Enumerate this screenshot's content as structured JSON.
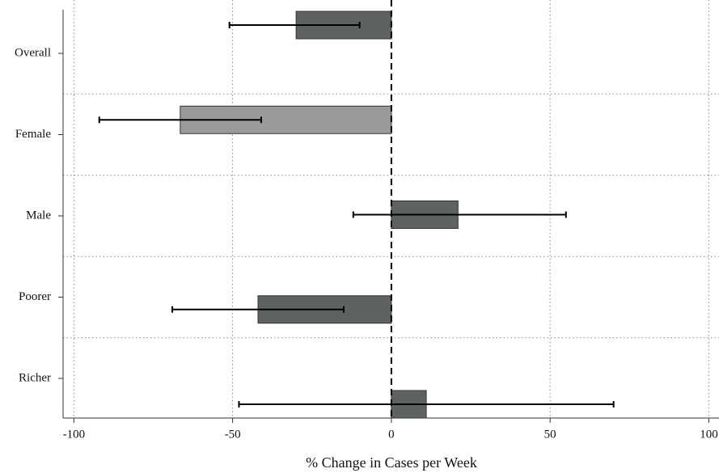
{
  "chart_data": {
    "type": "bar",
    "orientation": "horizontal",
    "x_label": "% Change in Cases per Week",
    "categories": [
      "Overall",
      "Female",
      "Male",
      "Poorer",
      "Richer"
    ],
    "values": [
      -30,
      -66.5,
      21,
      -42,
      11
    ],
    "lower": [
      -51,
      -92,
      -12,
      -69,
      -48
    ],
    "upper": [
      -10,
      -41,
      55,
      -15,
      70
    ],
    "colors": [
      "#5f6262",
      "#999b9b",
      "#5f6262",
      "#5f6262",
      "#5f6262"
    ],
    "xlim": [
      -103.4,
      103.2
    ],
    "xticks": [
      -100,
      -50,
      0,
      50,
      100
    ],
    "grid": true
  }
}
